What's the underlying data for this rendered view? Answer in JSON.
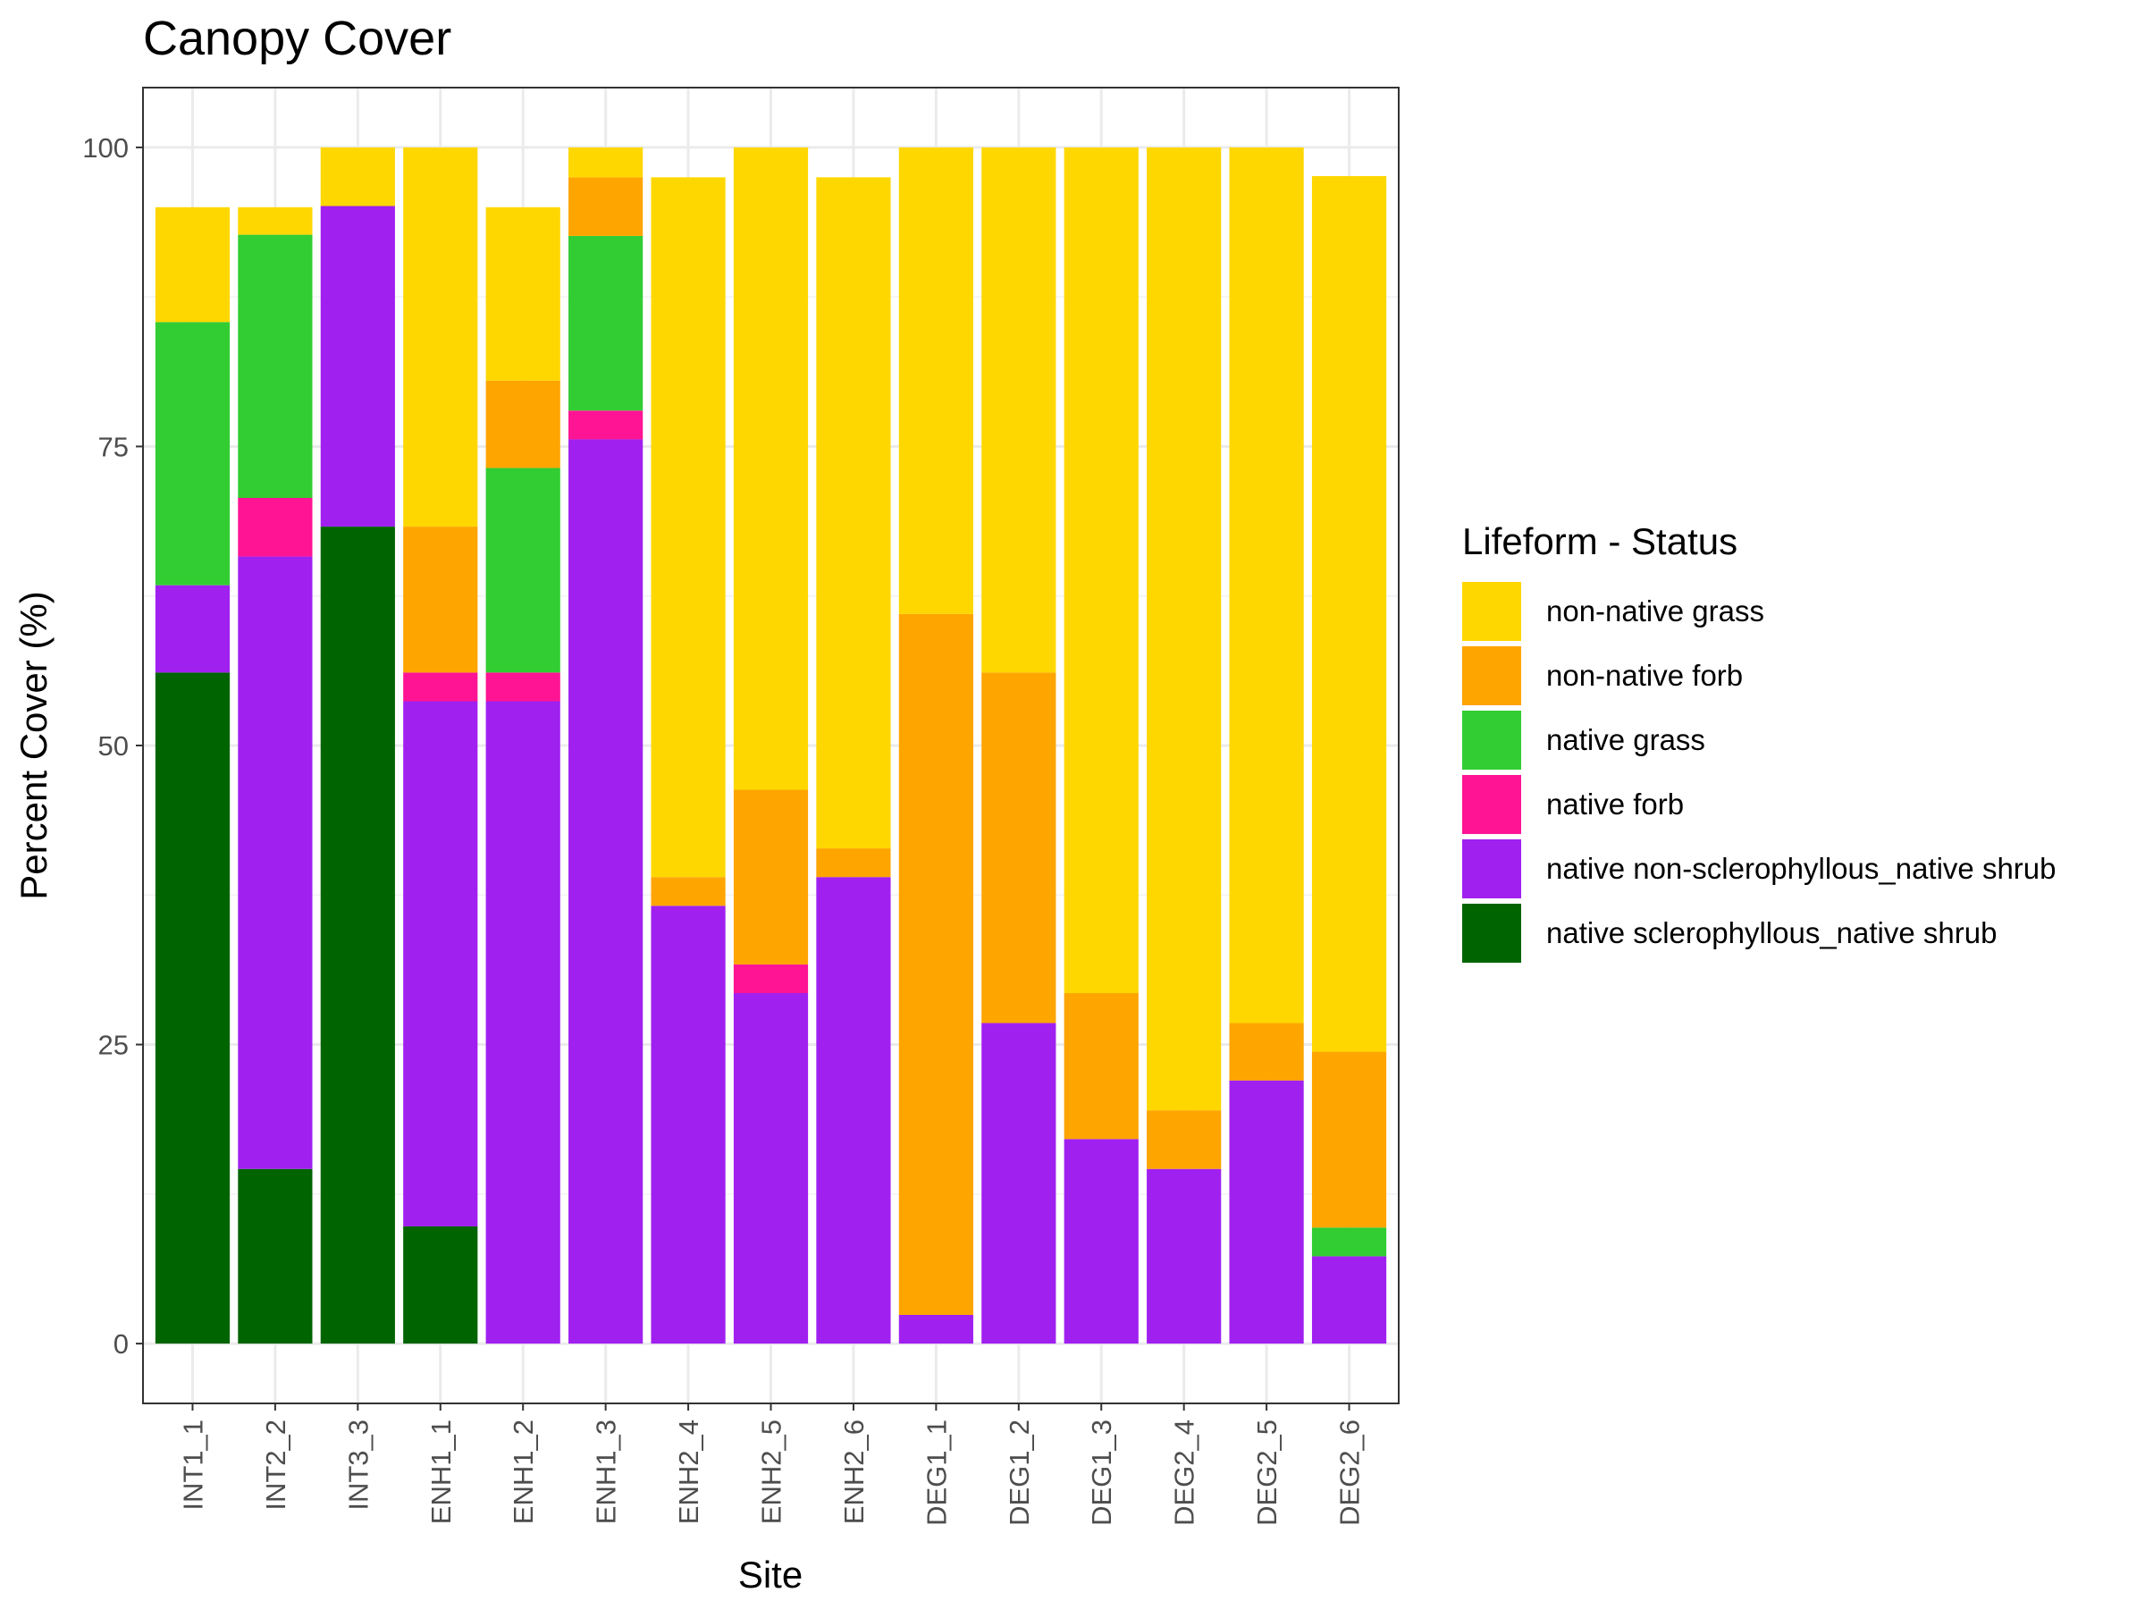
{
  "chart_data": {
    "type": "bar",
    "stacked": true,
    "title": "Canopy Cover",
    "xlabel": "Site",
    "ylabel": "Percent Cover (%)",
    "ylim": [
      -5,
      105
    ],
    "yticks": [
      0,
      25,
      50,
      75,
      100
    ],
    "grid": true,
    "legend_position": "right",
    "legend_title": "Lifeform - Status",
    "categories": [
      "INT1_1",
      "INT2_2",
      "INT3_3",
      "ENH1_1",
      "ENH1_2",
      "ENH1_3",
      "ENH2_4",
      "ENH2_5",
      "ENH2_6",
      "DEG1_1",
      "DEG1_2",
      "DEG1_3",
      "DEG2_4",
      "DEG2_5",
      "DEG2_6"
    ],
    "series": [
      {
        "name": "native sclerophyllous_native shrub",
        "color": "#006400",
        "values": [
          56.1,
          14.6,
          68.3,
          9.8,
          0,
          0,
          0,
          0,
          0,
          0,
          0,
          0,
          0,
          0,
          0
        ]
      },
      {
        "name": "native non-sclerophyllous_native shrub",
        "color": "#A020F0",
        "values": [
          7.3,
          51.2,
          26.8,
          43.9,
          53.7,
          75.6,
          36.6,
          29.3,
          39.0,
          2.4,
          26.8,
          17.1,
          14.6,
          22.0,
          7.3
        ]
      },
      {
        "name": "native forb",
        "color": "#FF1493",
        "values": [
          0,
          4.9,
          0,
          2.4,
          2.4,
          2.4,
          0,
          2.4,
          0,
          0,
          0,
          0,
          0,
          0,
          0
        ]
      },
      {
        "name": "native grass",
        "color": "#32CD32",
        "values": [
          22.0,
          22.0,
          0,
          0,
          17.1,
          14.6,
          0,
          0,
          0,
          0,
          0,
          0,
          0,
          0,
          2.4
        ]
      },
      {
        "name": "non-native forb",
        "color": "#FFA500",
        "values": [
          0,
          0,
          0,
          12.2,
          7.3,
          4.9,
          2.4,
          14.6,
          2.4,
          58.6,
          29.3,
          12.2,
          4.9,
          4.8,
          14.7
        ]
      },
      {
        "name": "non-native grass",
        "color": "#FFD700",
        "values": [
          9.6,
          2.3,
          4.9,
          31.7,
          14.5,
          2.5,
          58.5,
          53.7,
          56.1,
          39.0,
          43.9,
          70.7,
          80.5,
          73.2,
          73.2
        ]
      }
    ]
  }
}
